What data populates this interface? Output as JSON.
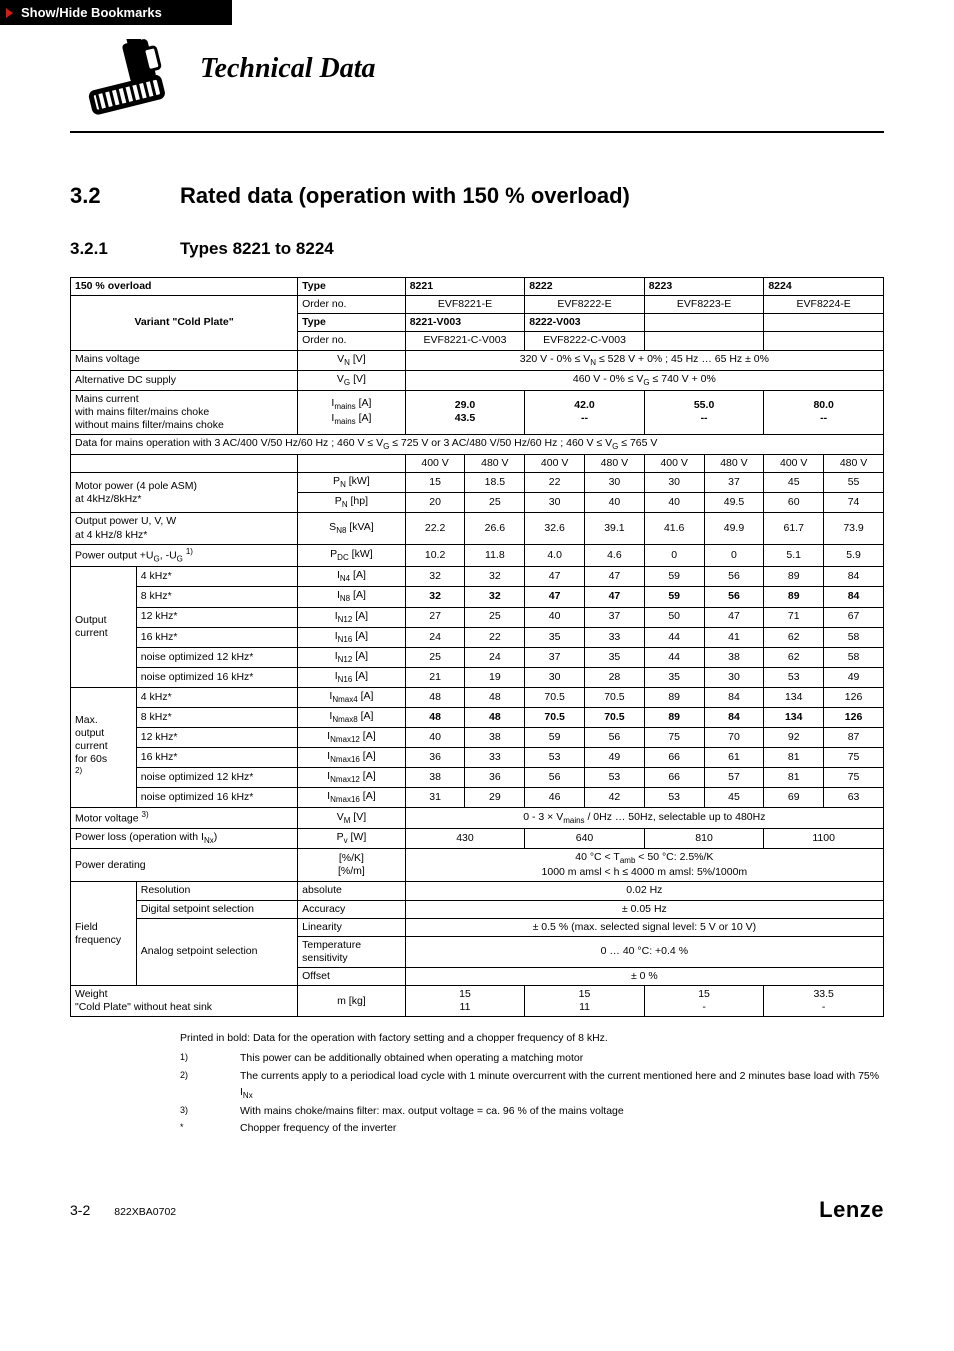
{
  "bookmark": {
    "label": "Show/Hide Bookmarks"
  },
  "chapter_title": "Technical Data",
  "h2": {
    "num": "3.2",
    "text": "Rated data (operation with 150 % overload)"
  },
  "h3": {
    "num": "3.2.1",
    "text": "Types 8221 to 8224"
  },
  "table": {
    "head": {
      "overload": "150 % overload",
      "type": "Type",
      "cols": [
        "8221",
        "8222",
        "8223",
        "8224"
      ],
      "order_no": "Order no.",
      "order_vals": [
        "EVF8221-E",
        "EVF8222-E",
        "EVF8223-E",
        "EVF8224-E"
      ],
      "variant": "Variant \"Cold Plate\"",
      "variant_type": "Type",
      "variant_vals": [
        "8221-V003",
        "8222-V003"
      ],
      "variant_order_no": "Order no.",
      "variant_order_vals": [
        "EVF8221-C-V003",
        "EVF8222-C-V003"
      ]
    },
    "mains_voltage": {
      "label": "Mains voltage",
      "sym": "V_N [V]",
      "val": "320 V - 0%  ≤  V_N  ≤ 528 V + 0% ;     45 Hz … 65 Hz  ± 0%"
    },
    "alt_dc": {
      "label": "Alternative DC supply",
      "sym": "V_G [V]",
      "val": "460 V - 0%  ≤  V_G  ≤  740 V +    0%"
    },
    "mains_current": {
      "label": "Mains current",
      "with": "with mains filter/mains choke",
      "without": "without mains filter/mains choke",
      "sym_with": "I_mains [A]",
      "sym_without": "I_mains [A]",
      "vals_with": [
        "29.0",
        "42.0",
        "55.0",
        "80.0"
      ],
      "vals_without": [
        "43.5",
        "--",
        "--",
        "--"
      ]
    },
    "data_note": "Data for mains operation with 3 AC/400 V/50 Hz/60 Hz ; 460 V  ≤  V_G  ≤  725 V or 3 AC/480 V/50 Hz/60 Hz ; 460 V  ≤  V_G ≤  765 V",
    "volt_header": [
      "400 V",
      "480 V",
      "400 V",
      "480 V",
      "400 V",
      "480 V",
      "400 V",
      "480 V"
    ],
    "motor_power": {
      "label": "Motor power (4 pole ASM)\nat 4kHz/8kHz*",
      "rows": [
        {
          "sym": "P_N [kW]",
          "v": [
            "15",
            "18.5",
            "22",
            "30",
            "30",
            "37",
            "45",
            "55"
          ]
        },
        {
          "sym": "P_N [hp]",
          "v": [
            "20",
            "25",
            "30",
            "40",
            "40",
            "49.5",
            "60",
            "74"
          ]
        }
      ]
    },
    "output_power": {
      "label": "Output power U, V, W\nat 4 kHz/8 kHz*",
      "sym": "S_N8 [kVA]",
      "v": [
        "22.2",
        "26.6",
        "32.6",
        "39.1",
        "41.6",
        "49.9",
        "61.7",
        "73.9"
      ]
    },
    "pdc": {
      "label": "Power output +U_G, -U_G ^1)",
      "sym": "P_DC [kW]",
      "v": [
        "10.2",
        "11.8",
        "4.0",
        "4.6",
        "0",
        "0",
        "5.1",
        "5.9"
      ]
    },
    "output_current": {
      "group": "Output\ncurrent",
      "rows": [
        {
          "lab": "4 kHz*",
          "sym": "I_N4 [A]",
          "v": [
            "32",
            "32",
            "47",
            "47",
            "59",
            "56",
            "89",
            "84"
          ]
        },
        {
          "lab": "8 kHz*",
          "sym": "I_N8 [A]",
          "v": [
            "32",
            "32",
            "47",
            "47",
            "59",
            "56",
            "89",
            "84"
          ],
          "bold": true
        },
        {
          "lab": "12 kHz*",
          "sym": "I_N12 [A]",
          "v": [
            "27",
            "25",
            "40",
            "37",
            "50",
            "47",
            "71",
            "67"
          ]
        },
        {
          "lab": "16 kHz*",
          "sym": "I_N16 [A]",
          "v": [
            "24",
            "22",
            "35",
            "33",
            "44",
            "41",
            "62",
            "58"
          ]
        },
        {
          "lab": "noise optimized 12 kHz*",
          "sym": "I_N12 [A]",
          "v": [
            "25",
            "24",
            "37",
            "35",
            "44",
            "38",
            "62",
            "58"
          ]
        },
        {
          "lab": "noise optimized 16 kHz*",
          "sym": "I_N16 [A]",
          "v": [
            "21",
            "19",
            "30",
            "28",
            "35",
            "30",
            "53",
            "49"
          ]
        }
      ]
    },
    "max_output_current": {
      "group": "Max.\noutput\ncurrent\nfor 60s\n^2)",
      "rows": [
        {
          "lab": "4 kHz*",
          "sym": "I_Nmax4 [A]",
          "v": [
            "48",
            "48",
            "70.5",
            "70.5",
            "89",
            "84",
            "134",
            "126"
          ]
        },
        {
          "lab": "8 kHz*",
          "sym": "I_Nmax8 [A]",
          "v": [
            "48",
            "48",
            "70.5",
            "70.5",
            "89",
            "84",
            "134",
            "126"
          ],
          "bold": true
        },
        {
          "lab": "12 kHz*",
          "sym": "I_Nmax12 [A]",
          "v": [
            "40",
            "38",
            "59",
            "56",
            "75",
            "70",
            "92",
            "87"
          ]
        },
        {
          "lab": "16 kHz*",
          "sym": "I_Nmax16 [A]",
          "v": [
            "36",
            "33",
            "53",
            "49",
            "66",
            "61",
            "81",
            "75"
          ]
        },
        {
          "lab": "noise optimized 12 kHz*",
          "sym": "I_Nmax12 [A]",
          "v": [
            "38",
            "36",
            "56",
            "53",
            "66",
            "57",
            "81",
            "75"
          ]
        },
        {
          "lab": "noise optimized 16 kHz*",
          "sym": "I_Nmax16 [A]",
          "v": [
            "31",
            "29",
            "46",
            "42",
            "53",
            "45",
            "69",
            "63"
          ]
        }
      ]
    },
    "motor_voltage": {
      "label": "Motor voltage ^3)",
      "sym": "V_M [V]",
      "val": "0 - 3  ×  V_mains / 0Hz … 50Hz, selectable up to 480Hz"
    },
    "power_loss": {
      "label": "Power loss (operation with I_Nx)",
      "sym": "P_v [W]",
      "v": [
        "430",
        "640",
        "810",
        "1100"
      ]
    },
    "power_derating": {
      "label": "Power derating",
      "sym": "[%/K]\n[%/m]",
      "val": "40 °C < T_amb < 50 °C: 2.5%/K\n1000 m amsl  <  h  ≤  4000 m amsl: 5%/1000m"
    },
    "field_freq": {
      "group": "Field\nfrequency",
      "rows": [
        {
          "lab": "Resolution",
          "sym": "absolute",
          "val": "0.02 Hz"
        },
        {
          "lab": "Digital setpoint selection",
          "sym": "Accuracy",
          "val": "± 0.05 Hz"
        },
        {
          "lab": "Analog setpoint selection",
          "sym": "Linearity",
          "val": "± 0.5 % (max. selected signal level: 5 V or  10 V)"
        },
        {
          "lab": "",
          "sym": "Temperature sensitivity",
          "val": "0 … 40 °C: +0.4 %"
        },
        {
          "lab": "",
          "sym": "Offset",
          "val": "± 0 %"
        }
      ]
    },
    "weight": {
      "label": "Weight\n\"Cold Plate\" without heat sink",
      "sym": "m [kg]",
      "top": [
        "15",
        "15",
        "15",
        "33.5"
      ],
      "bot": [
        "11",
        "11",
        "-",
        "-"
      ]
    }
  },
  "footnotes": {
    "intro": "Printed in bold: Data for the operation with factory setting and a chopper frequency of 8 kHz.",
    "items": [
      {
        "mk": "1)",
        "tx": "This power can be additionally obtained when operating a matching motor"
      },
      {
        "mk": "2)",
        "tx": "The currents apply to a periodical load cycle with 1 minute overcurrent  with the current mentioned here and 2 minutes base load with 75% I_Nx"
      },
      {
        "mk": "3)",
        "tx": "With mains choke/mains filter: max. output voltage = ca. 96 % of the mains voltage"
      },
      {
        "mk": "*",
        "tx": "Chopper frequency of the inverter"
      }
    ]
  },
  "footer": {
    "page": "3-2",
    "doc": "822XBA0702",
    "brand": "Lenze"
  }
}
